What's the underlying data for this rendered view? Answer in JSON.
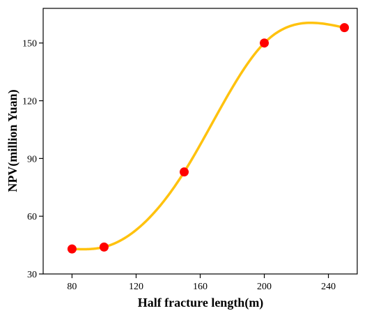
{
  "chart_data": {
    "type": "line",
    "title": "",
    "xlabel": "Half fracture length(m)",
    "ylabel": "NPV(million Yuan)",
    "xlim": [
      62,
      258
    ],
    "ylim": [
      30,
      168
    ],
    "x_ticks": [
      80,
      120,
      160,
      200,
      240
    ],
    "y_ticks": [
      30,
      60,
      90,
      120,
      150
    ],
    "x_tick_labels": [
      "80",
      "120",
      "160",
      "200",
      "240"
    ],
    "y_tick_labels": [
      "30",
      "60",
      "90",
      "120",
      "150"
    ],
    "grid": false,
    "legend": "none",
    "series": [
      {
        "x": [
          80,
          100,
          150,
          200,
          250
        ],
        "y": [
          43,
          44,
          83,
          150,
          158
        ],
        "line_color": "#FFC20E",
        "marker_color": "#FF0000",
        "smooth": true
      }
    ]
  }
}
